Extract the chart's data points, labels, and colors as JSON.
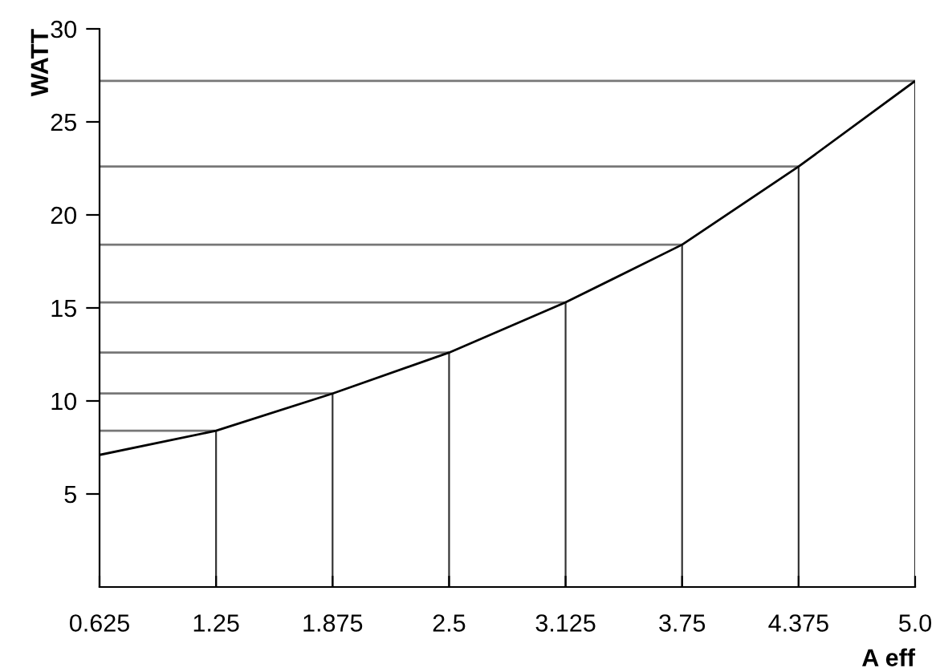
{
  "chart_data": {
    "type": "line",
    "xlabel": "A eff",
    "ylabel": "WATT",
    "x": [
      0.625,
      1.25,
      1.875,
      2.5,
      3.125,
      3.75,
      4.375,
      5.0
    ],
    "series": [
      {
        "color": "#777777",
        "x": [
          0.625,
          1.25
        ],
        "values": [
          8.4,
          8.4
        ]
      },
      {
        "color": "#777777",
        "x": [
          0.625,
          1.875
        ],
        "values": [
          10.4,
          10.4
        ]
      },
      {
        "color": "#777777",
        "x": [
          0.625,
          2.5
        ],
        "values": [
          12.6,
          12.6
        ]
      },
      {
        "color": "#777777",
        "x": [
          0.625,
          3.125
        ],
        "values": [
          15.3,
          15.3
        ]
      },
      {
        "color": "#777777",
        "x": [
          0.625,
          3.75
        ],
        "values": [
          18.4,
          18.4
        ]
      },
      {
        "color": "#777777",
        "x": [
          0.625,
          4.375
        ],
        "values": [
          22.6,
          22.6
        ]
      },
      {
        "color": "#777777",
        "x": [
          0.625,
          5.0
        ],
        "values": [
          27.2,
          27.2
        ]
      },
      {
        "type": "bar",
        "color": "#333333",
        "x": [
          1.25,
          1.875,
          2.5,
          3.125,
          3.75,
          4.375,
          5.0
        ],
        "values": [
          8.4,
          10.4,
          12.6,
          15.3,
          18.4,
          22.6,
          27.2
        ]
      },
      {
        "color": "#000000",
        "values": [
          7.1,
          8.4,
          10.4,
          12.6,
          15.3,
          18.4,
          22.6,
          27.2
        ]
      }
    ],
    "xlim": [
      0.625,
      5.0
    ],
    "xticks": [
      0.625,
      1.25,
      1.875,
      2.5,
      3.125,
      3.75,
      4.375,
      {
        "value": 5.0,
        "label": "5.0"
      }
    ],
    "ylim": [
      0,
      30
    ],
    "yticks": [
      5,
      10,
      15,
      20,
      25,
      30
    ],
    "grid": false,
    "legend": false,
    "marker": "none",
    "line_style": "solid"
  }
}
